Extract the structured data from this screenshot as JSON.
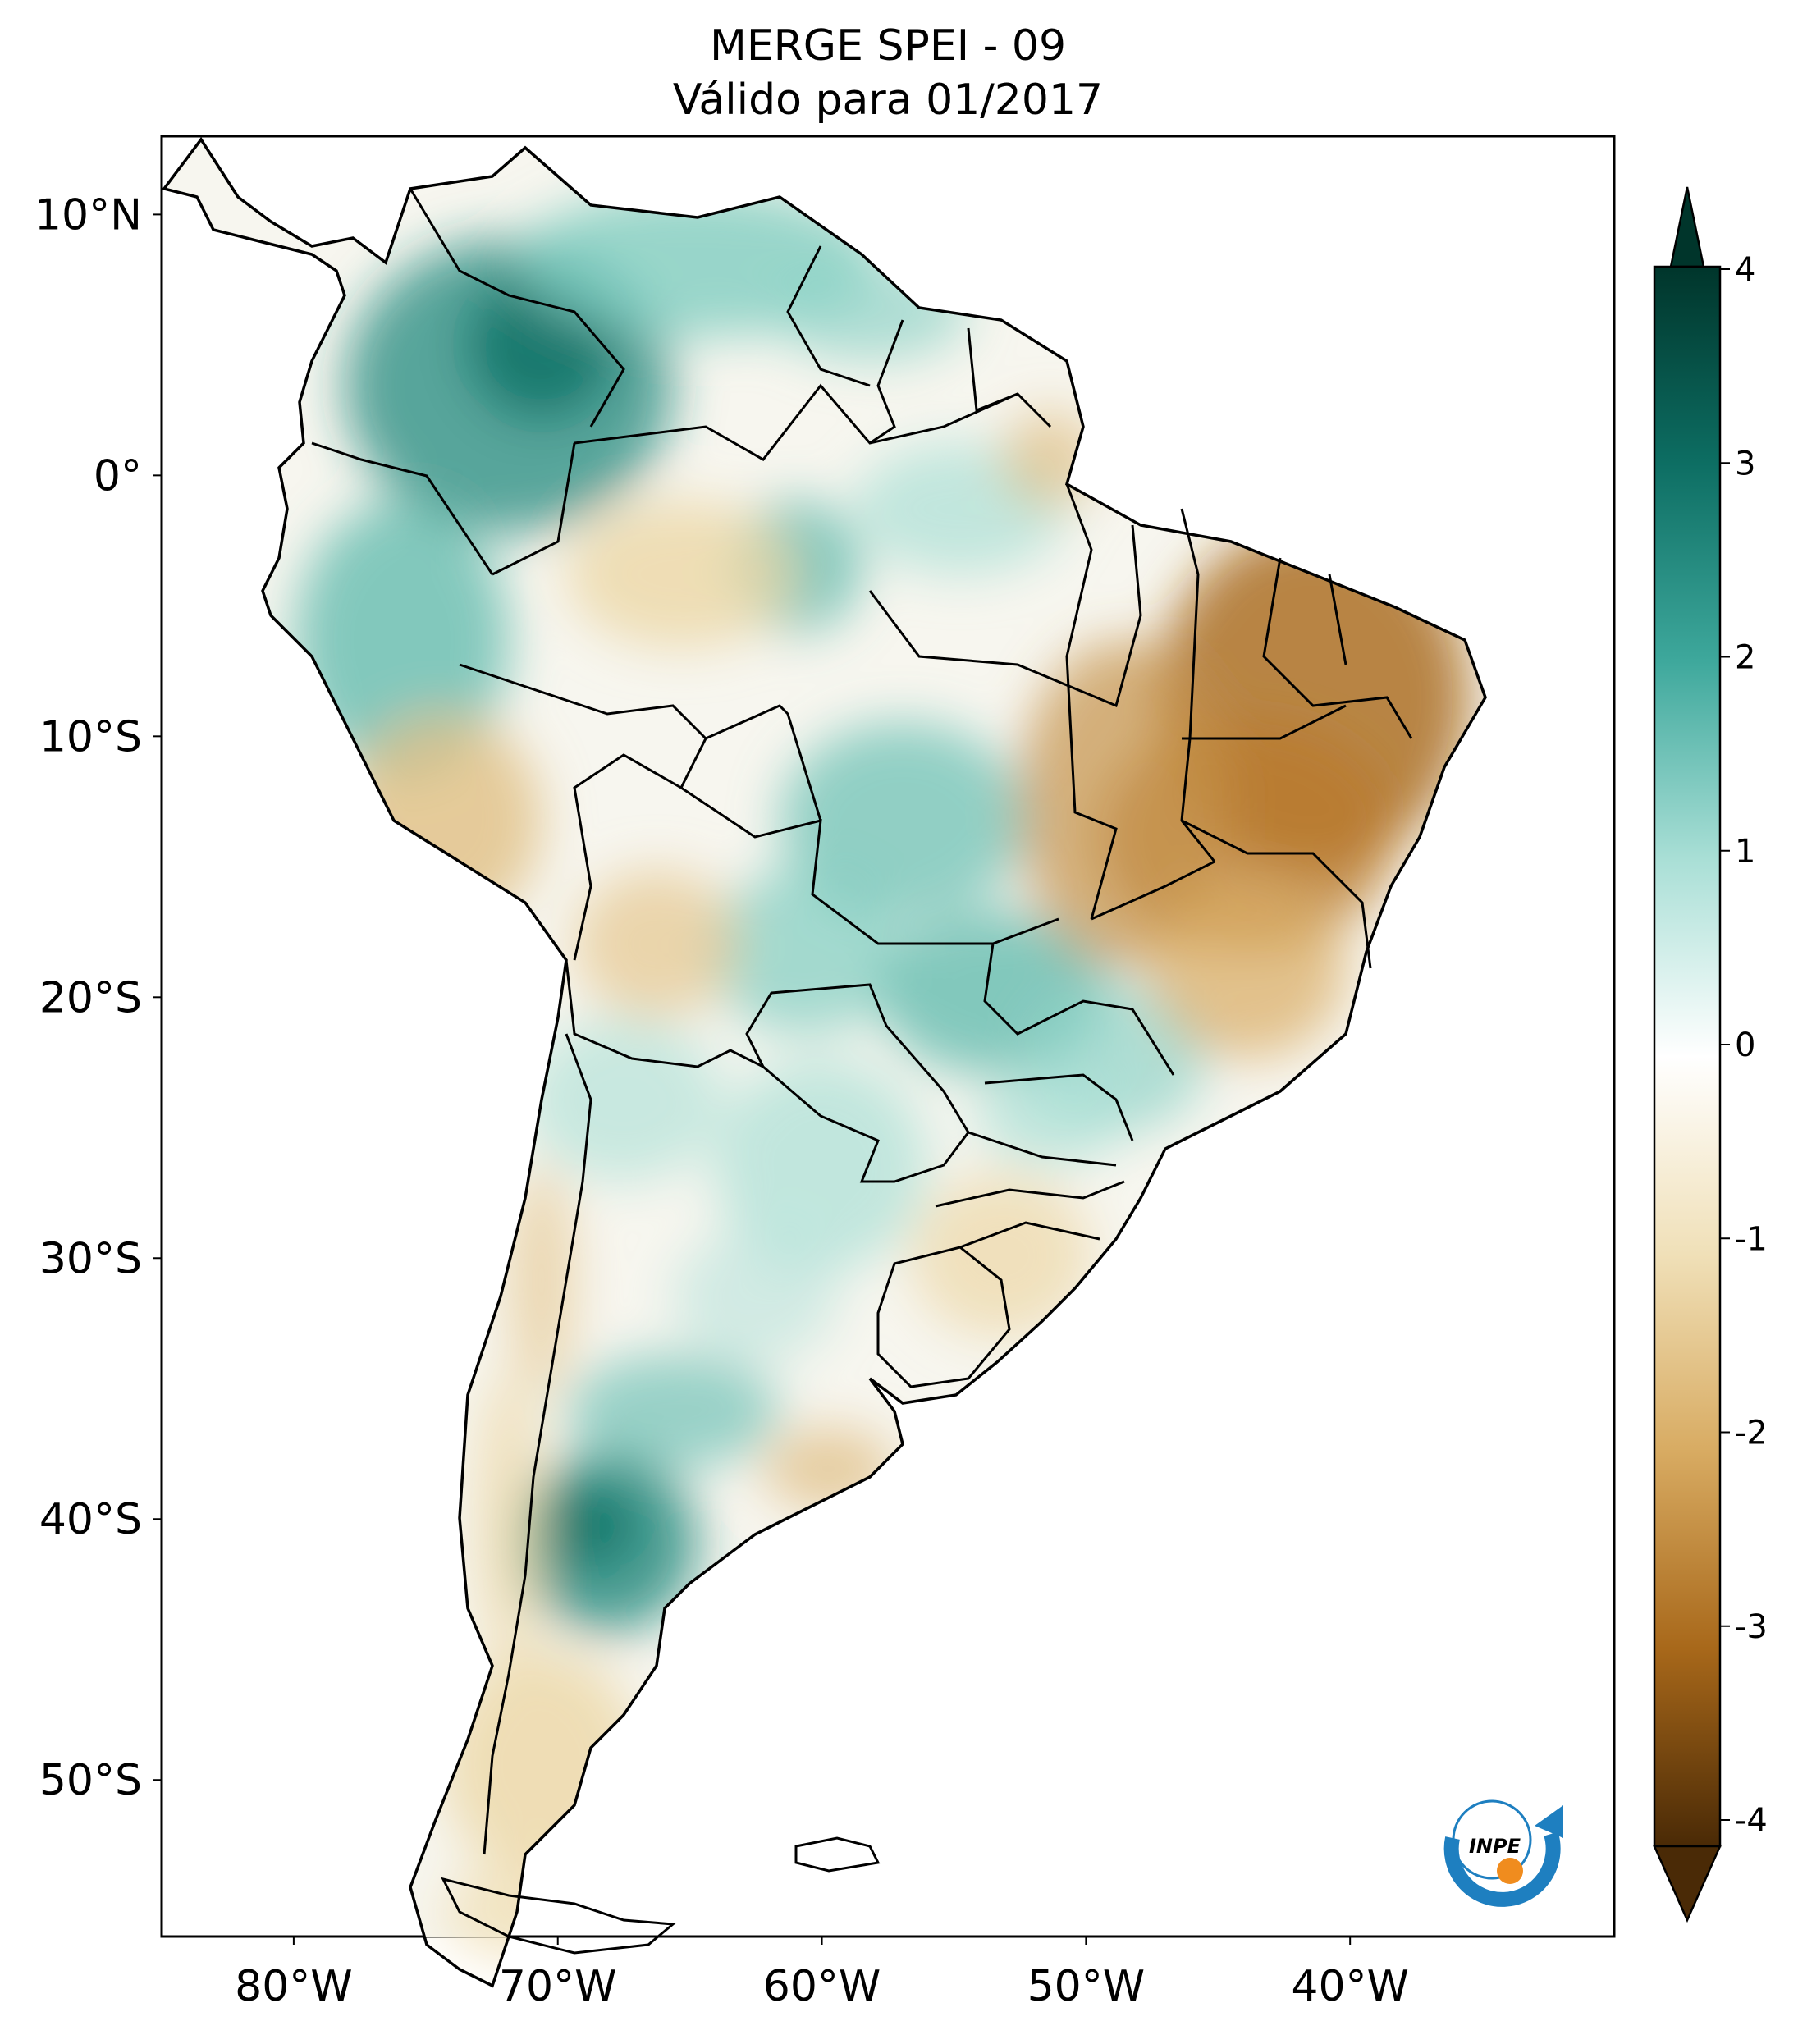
{
  "title": {
    "line1": "MERGE   SPEI - 09",
    "line2": "Válido para 01/2017"
  },
  "axes": {
    "lat_ticks": [
      {
        "value": 10,
        "label": "10°N"
      },
      {
        "value": 0,
        "label": "0°"
      },
      {
        "value": -10,
        "label": "10°S"
      },
      {
        "value": -20,
        "label": "20°S"
      },
      {
        "value": -30,
        "label": "30°S"
      },
      {
        "value": -40,
        "label": "40°S"
      },
      {
        "value": -50,
        "label": "50°S"
      }
    ],
    "lon_ticks": [
      {
        "value": -80,
        "label": "80°W"
      },
      {
        "value": -70,
        "label": "70°W"
      },
      {
        "value": -60,
        "label": "60°W"
      },
      {
        "value": -50,
        "label": "50°W"
      },
      {
        "value": -40,
        "label": "40°W"
      }
    ],
    "lon_range": [
      -85,
      -30
    ],
    "lat_range": [
      -56,
      13
    ]
  },
  "colorbar": {
    "range": [
      -4,
      4
    ],
    "ticks": [
      {
        "value": 4,
        "label": "4"
      },
      {
        "value": 3,
        "label": "3"
      },
      {
        "value": 2,
        "label": "2"
      },
      {
        "value": 1,
        "label": "1"
      },
      {
        "value": 0,
        "label": "0"
      },
      {
        "value": -1,
        "label": "-1"
      },
      {
        "value": -2,
        "label": "-2"
      },
      {
        "value": -3,
        "label": "-3"
      },
      {
        "value": -4,
        "label": "-4"
      }
    ],
    "colors": {
      "top": "#00352b",
      "wet3": "#0d6e63",
      "wet2": "#3ea89c",
      "wet1": "#a9dfd6",
      "zero": "#ffffff",
      "dry1": "#f0e0b8",
      "dry2": "#d8ab62",
      "dry3": "#a8681a",
      "bottom": "#4a2a06"
    }
  },
  "logo": {
    "text": "INPE",
    "colors": {
      "arc": "#1e7fc0",
      "dot": "#f08c1e"
    }
  }
}
